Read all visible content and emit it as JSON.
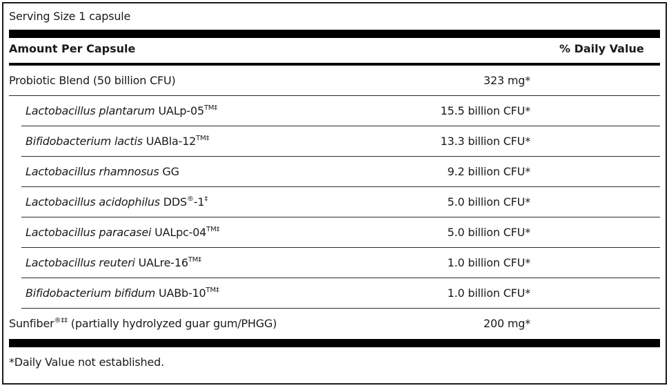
{
  "serving_size": "Serving Size 1 capsule",
  "header": {
    "amount_label": "Amount Per Capsule",
    "dv_label": "% Daily Value"
  },
  "rows": [
    {
      "italic": "",
      "name": "Probiotic Blend (50 billion CFU)",
      "sup": "",
      "suffix": "",
      "amount": "323 mg*"
    },
    {
      "italic": "Lactobacillus plantarum",
      "name": " UALp-05",
      "sup": "TM‡",
      "suffix": "",
      "amount": "15.5 billion CFU*"
    },
    {
      "italic": "Bifidobacterium lactis",
      "name": " UABla-12",
      "sup": "TM‡",
      "suffix": "",
      "amount": "13.3 billion CFU*"
    },
    {
      "italic": "Lactobacillus rhamnosus",
      "name": " GG",
      "sup": "",
      "suffix": "",
      "amount": "9.2 billion CFU*"
    },
    {
      "italic": "Lactobacillus acidophilus",
      "name": " DDS",
      "sup": "®",
      "suffix": "-1",
      "sup2": "‡",
      "amount": "5.0 billion CFU*"
    },
    {
      "italic": "Lactobacillus paracasei",
      "name": " UALpc-04",
      "sup": "TM‡",
      "suffix": "",
      "amount": "5.0 billion CFU*"
    },
    {
      "italic": "Lactobacillus reuteri",
      "name": " UALre-16",
      "sup": "TM‡",
      "suffix": "",
      "amount": "1.0 billion CFU*"
    },
    {
      "italic": "Bifidobacterium bifidum",
      "name": " UABb-10",
      "sup": "TM‡",
      "suffix": "",
      "amount": "1.0 billion CFU*"
    },
    {
      "italic": "",
      "name": "Sunfiber",
      "sup": "®‡‡",
      "suffix": " (partially hydrolyzed guar gum/PHGG)",
      "amount": "200 mg*"
    }
  ],
  "footnote": "*Daily Value not established."
}
